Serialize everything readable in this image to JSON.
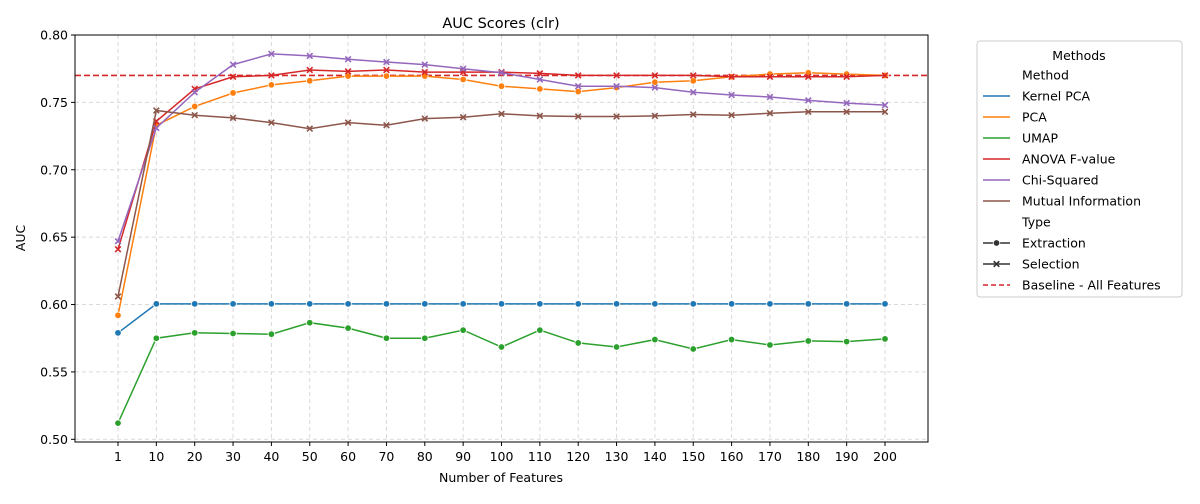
{
  "chart_data": {
    "type": "line",
    "title": "AUC Scores (clr)",
    "xlabel": "Number of Features",
    "ylabel": "AUC",
    "x": [
      1,
      10,
      20,
      30,
      40,
      50,
      60,
      70,
      80,
      90,
      100,
      110,
      120,
      130,
      140,
      150,
      160,
      170,
      180,
      190,
      200
    ],
    "x_tick_labels": [
      "1",
      "10",
      "20",
      "30",
      "40",
      "50",
      "60",
      "70",
      "80",
      "90",
      "100",
      "110",
      "120",
      "130",
      "140",
      "150",
      "160",
      "170",
      "180",
      "190",
      "200"
    ],
    "ylim": [
      0.498,
      0.8
    ],
    "y_ticks": [
      0.5,
      0.55,
      0.6,
      0.65,
      0.7,
      0.75,
      0.8
    ],
    "y_tick_labels": [
      "0.50",
      "0.55",
      "0.60",
      "0.65",
      "0.70",
      "0.75",
      "0.80"
    ],
    "grid": true,
    "legend_placement": "outside-right",
    "series": [
      {
        "name": "Kernel PCA",
        "type": "Extraction",
        "marker": "circle",
        "color": "#1f77b4",
        "values": [
          0.579,
          0.6005,
          0.6005,
          0.6005,
          0.6005,
          0.6005,
          0.6005,
          0.6005,
          0.6005,
          0.6005,
          0.6005,
          0.6005,
          0.6005,
          0.6005,
          0.6005,
          0.6005,
          0.6005,
          0.6005,
          0.6005,
          0.6005,
          0.6005
        ]
      },
      {
        "name": "PCA",
        "type": "Extraction",
        "marker": "circle",
        "color": "#ff7f0e",
        "values": [
          0.592,
          0.733,
          0.747,
          0.757,
          0.763,
          0.766,
          0.7695,
          0.7695,
          0.7695,
          0.767,
          0.762,
          0.76,
          0.758,
          0.761,
          0.765,
          0.766,
          0.769,
          0.771,
          0.772,
          0.771,
          0.77
        ]
      },
      {
        "name": "UMAP",
        "type": "Extraction",
        "marker": "circle",
        "color": "#2ca02c",
        "values": [
          0.512,
          0.575,
          0.579,
          0.5785,
          0.578,
          0.5865,
          0.5825,
          0.575,
          0.575,
          0.581,
          0.5685,
          0.581,
          0.5715,
          0.5685,
          0.574,
          0.567,
          0.574,
          0.57,
          0.573,
          0.5725,
          0.5745
        ]
      },
      {
        "name": "ANOVA F-value",
        "type": "Selection",
        "marker": "x",
        "color": "#d62728",
        "values": [
          0.641,
          0.736,
          0.76,
          0.769,
          0.77,
          0.774,
          0.773,
          0.774,
          0.7725,
          0.7725,
          0.7725,
          0.7715,
          0.77,
          0.77,
          0.77,
          0.77,
          0.769,
          0.769,
          0.769,
          0.769,
          0.77
        ]
      },
      {
        "name": "Chi-Squared",
        "type": "Selection",
        "marker": "x",
        "color": "#9467bd",
        "values": [
          0.647,
          0.731,
          0.7575,
          0.778,
          0.786,
          0.7845,
          0.782,
          0.78,
          0.778,
          0.775,
          0.772,
          0.767,
          0.762,
          0.762,
          0.761,
          0.7575,
          0.7555,
          0.754,
          0.7515,
          0.7495,
          0.748
        ]
      },
      {
        "name": "Mutual Information",
        "type": "Selection",
        "marker": "x",
        "color": "#8c564b",
        "values": [
          0.606,
          0.744,
          0.7405,
          0.7385,
          0.735,
          0.7305,
          0.735,
          0.733,
          0.738,
          0.739,
          0.7415,
          0.74,
          0.7395,
          0.7395,
          0.74,
          0.741,
          0.7405,
          0.742,
          0.743,
          0.743,
          0.743
        ]
      }
    ],
    "baseline": {
      "name": "Baseline - All Features",
      "value": 0.77,
      "color": "#d62728"
    },
    "legend": {
      "title": "Methods",
      "method_header": "Method",
      "type_header": "Type",
      "types": [
        {
          "name": "Extraction",
          "marker": "circle"
        },
        {
          "name": "Selection",
          "marker": "x"
        }
      ]
    }
  }
}
